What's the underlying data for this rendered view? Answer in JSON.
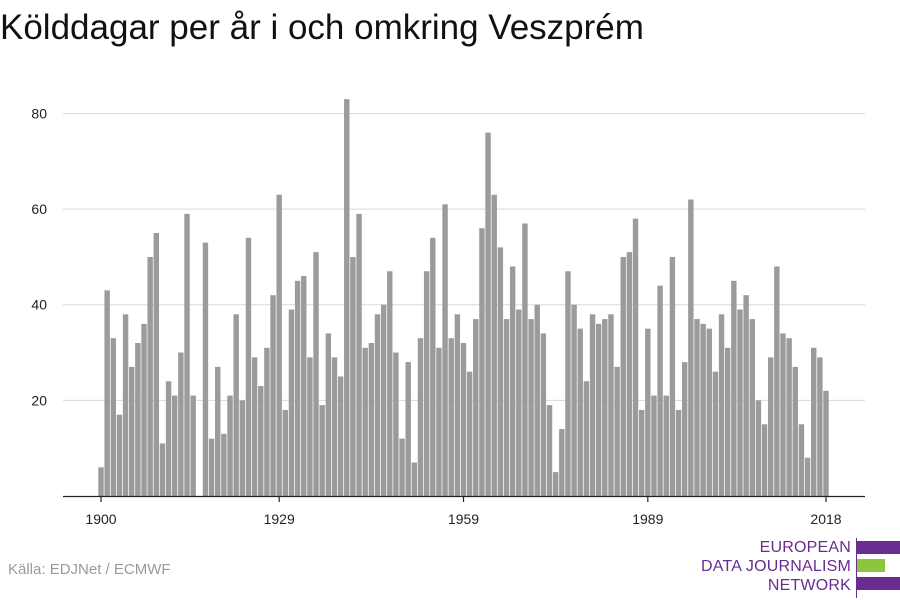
{
  "title": "Kölddagar per år i och omkring Veszprém",
  "source": "Källa: EDJNet / ECMWF",
  "logo": {
    "lines": [
      "EUROPEAN",
      "DATA JOURNALISM",
      "NETWORK"
    ],
    "colors": {
      "primary": "#6a2c91",
      "accent": "#8cc63f"
    }
  },
  "chart_data": {
    "type": "bar",
    "title": "Kölddagar per år i och omkring Veszprém",
    "xlabel": "",
    "ylabel": "",
    "bar_color": "#9b9b9b",
    "grid": true,
    "ylim": [
      0,
      87
    ],
    "yticks": [
      20,
      40,
      60,
      80
    ],
    "xticks": [
      1900,
      1929,
      1959,
      1989,
      2018
    ],
    "x": [
      1900,
      1901,
      1902,
      1903,
      1904,
      1905,
      1906,
      1907,
      1908,
      1909,
      1910,
      1911,
      1912,
      1913,
      1914,
      1915,
      1916,
      1917,
      1918,
      1919,
      1920,
      1921,
      1922,
      1923,
      1924,
      1925,
      1926,
      1927,
      1928,
      1929,
      1930,
      1931,
      1932,
      1933,
      1934,
      1935,
      1936,
      1937,
      1938,
      1939,
      1940,
      1941,
      1942,
      1943,
      1944,
      1945,
      1946,
      1947,
      1948,
      1949,
      1950,
      1951,
      1952,
      1953,
      1954,
      1955,
      1956,
      1957,
      1958,
      1959,
      1960,
      1961,
      1962,
      1963,
      1964,
      1965,
      1966,
      1967,
      1968,
      1969,
      1970,
      1971,
      1972,
      1973,
      1974,
      1975,
      1976,
      1977,
      1978,
      1979,
      1980,
      1981,
      1982,
      1983,
      1984,
      1985,
      1986,
      1987,
      1988,
      1989,
      1990,
      1991,
      1992,
      1993,
      1994,
      1995,
      1996,
      1997,
      1998,
      1999,
      2000,
      2001,
      2002,
      2003,
      2004,
      2005,
      2006,
      2007,
      2008,
      2009,
      2010,
      2011,
      2012,
      2013,
      2014,
      2015,
      2016,
      2017,
      2018
    ],
    "values": [
      6,
      43,
      33,
      17,
      38,
      27,
      32,
      36,
      50,
      55,
      11,
      24,
      21,
      30,
      59,
      21,
      0,
      53,
      12,
      27,
      13,
      21,
      38,
      20,
      54,
      29,
      23,
      31,
      42,
      63,
      18,
      39,
      45,
      46,
      29,
      51,
      19,
      34,
      29,
      25,
      83,
      50,
      59,
      31,
      32,
      38,
      40,
      47,
      30,
      12,
      28,
      7,
      33,
      47,
      54,
      31,
      61,
      33,
      38,
      32,
      26,
      37,
      56,
      76,
      63,
      52,
      37,
      48,
      39,
      57,
      37,
      40,
      34,
      19,
      5,
      14,
      47,
      40,
      35,
      24,
      38,
      36,
      37,
      38,
      27,
      50,
      51,
      58,
      18,
      35,
      21,
      44,
      21,
      50,
      18,
      28,
      62,
      37,
      36,
      35,
      26,
      38,
      31,
      45,
      39,
      42,
      37,
      20,
      15,
      29,
      48,
      34,
      33,
      27,
      15,
      8,
      31,
      29,
      22
    ],
    "series": [
      {
        "values": [
          6,
          43,
          33,
          17,
          38,
          27,
          32,
          36,
          50,
          55,
          11,
          24,
          21,
          30,
          59,
          21,
          0,
          53,
          12,
          27,
          13,
          21,
          38,
          20,
          54,
          29,
          23,
          31,
          42,
          63,
          18,
          39,
          45,
          46,
          29,
          51,
          19,
          34,
          29,
          25,
          83,
          50,
          59,
          31,
          32,
          38,
          40,
          47,
          30,
          12,
          28,
          7,
          33,
          47,
          54,
          31,
          61,
          33,
          38,
          32,
          26,
          37,
          56,
          76,
          63,
          52,
          37,
          48,
          39,
          57,
          37,
          40,
          34,
          19,
          5,
          14,
          47,
          40,
          35,
          24,
          38,
          36,
          37,
          38,
          27,
          50,
          51,
          58,
          18,
          35,
          21,
          44,
          21,
          50,
          18,
          28,
          62,
          37,
          36,
          35,
          26,
          38,
          31,
          45,
          39,
          42,
          37,
          20,
          15,
          29,
          48,
          34,
          33,
          27,
          15,
          8,
          31,
          29,
          22
        ]
      }
    ]
  }
}
